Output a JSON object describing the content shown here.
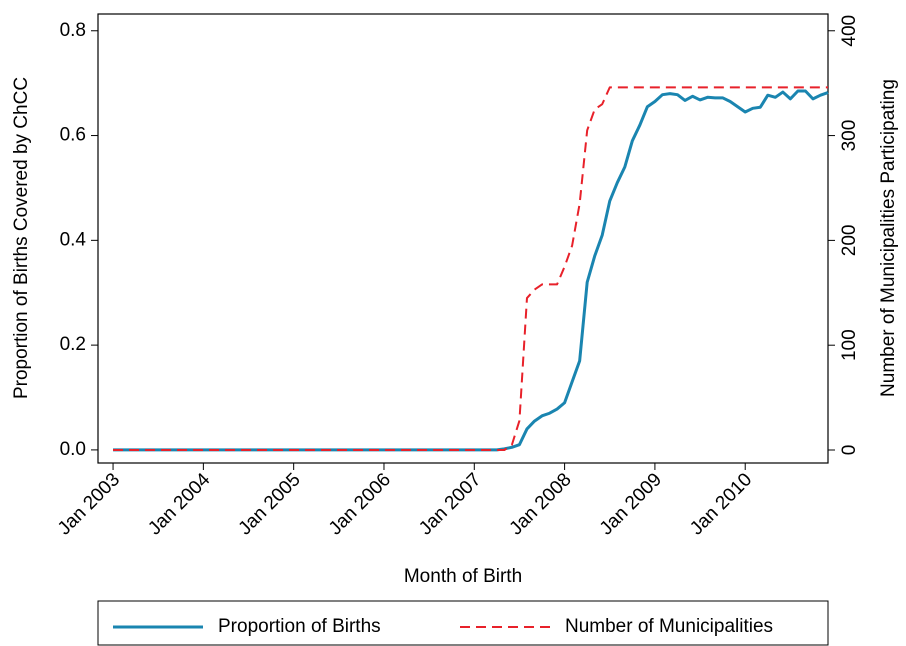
{
  "chart_data": {
    "type": "line",
    "xlabel": "Month of Birth",
    "ylabel": "Proportion of Births Covered by ChCC",
    "y2label": "Number of Municipalities Participating",
    "x": [
      "2003-01",
      "2003-02",
      "2003-03",
      "2003-04",
      "2003-05",
      "2003-06",
      "2003-07",
      "2003-08",
      "2003-09",
      "2003-10",
      "2003-11",
      "2003-12",
      "2004-01",
      "2004-02",
      "2004-03",
      "2004-04",
      "2004-05",
      "2004-06",
      "2004-07",
      "2004-08",
      "2004-09",
      "2004-10",
      "2004-11",
      "2004-12",
      "2005-01",
      "2005-02",
      "2005-03",
      "2005-04",
      "2005-05",
      "2005-06",
      "2005-07",
      "2005-08",
      "2005-09",
      "2005-10",
      "2005-11",
      "2005-12",
      "2006-01",
      "2006-02",
      "2006-03",
      "2006-04",
      "2006-05",
      "2006-06",
      "2006-07",
      "2006-08",
      "2006-09",
      "2006-10",
      "2006-11",
      "2006-12",
      "2007-01",
      "2007-02",
      "2007-03",
      "2007-04",
      "2007-05",
      "2007-06",
      "2007-07",
      "2007-08",
      "2007-09",
      "2007-10",
      "2007-11",
      "2007-12",
      "2008-01",
      "2008-02",
      "2008-03",
      "2008-04",
      "2008-05",
      "2008-06",
      "2008-07",
      "2008-08",
      "2008-09",
      "2008-10",
      "2008-11",
      "2008-12",
      "2009-01",
      "2009-02",
      "2009-03",
      "2009-04",
      "2009-05",
      "2009-06",
      "2009-07",
      "2009-08",
      "2009-09",
      "2009-10",
      "2009-11",
      "2009-12",
      "2010-01",
      "2010-02",
      "2010-03",
      "2010-04",
      "2010-05",
      "2010-06",
      "2010-07",
      "2010-08",
      "2010-09",
      "2010-10",
      "2010-11",
      "2010-12"
    ],
    "series": [
      {
        "name": "Proportion of Births",
        "color": "#1a85b0",
        "dash": false,
        "axis": "y",
        "values": [
          0,
          0,
          0,
          0,
          0,
          0,
          0,
          0,
          0,
          0,
          0,
          0,
          0,
          0,
          0,
          0,
          0,
          0,
          0,
          0,
          0,
          0,
          0,
          0,
          0,
          0,
          0,
          0,
          0,
          0,
          0,
          0,
          0,
          0,
          0,
          0,
          0,
          0,
          0,
          0,
          0,
          0,
          0,
          0,
          0,
          0,
          0,
          0,
          0,
          0,
          0,
          0,
          0.002,
          0.005,
          0.01,
          0.04,
          0.055,
          0.065,
          0.07,
          0.078,
          0.09,
          0.13,
          0.17,
          0.32,
          0.37,
          0.41,
          0.475,
          0.51,
          0.54,
          0.59,
          0.62,
          0.655,
          0.665,
          0.678,
          0.68,
          0.678,
          0.667,
          0.675,
          0.668,
          0.673,
          0.672,
          0.672,
          0.665,
          0.655,
          0.645,
          0.652,
          0.654,
          0.677,
          0.673,
          0.683,
          0.67,
          0.685,
          0.685,
          0.67,
          0.677,
          0.682
        ]
      },
      {
        "name": "Number of Municipalities",
        "color": "#e8212a",
        "dash": true,
        "axis": "y2",
        "values": [
          0,
          0,
          0,
          0,
          0,
          0,
          0,
          0,
          0,
          0,
          0,
          0,
          0,
          0,
          0,
          0,
          0,
          0,
          0,
          0,
          0,
          0,
          0,
          0,
          0,
          0,
          0,
          0,
          0,
          0,
          0,
          0,
          0,
          0,
          0,
          0,
          0,
          0,
          0,
          0,
          0,
          0,
          0,
          0,
          0,
          0,
          0,
          0,
          0,
          0,
          0,
          0,
          0,
          5,
          28,
          145,
          153,
          158,
          158,
          158,
          175,
          195,
          235,
          305,
          325,
          330,
          346,
          346,
          346,
          346,
          346,
          346,
          346,
          346,
          346,
          346,
          346,
          346,
          346,
          346,
          346,
          346,
          346,
          346,
          346,
          346,
          346,
          346,
          346,
          346,
          346,
          346,
          346,
          346,
          346,
          346
        ]
      }
    ],
    "xlim": [
      "2002-11",
      "2010-12"
    ],
    "xticks": [
      {
        "value": "2003-01",
        "label": "Jan 2003"
      },
      {
        "value": "2004-01",
        "label": "Jan 2004"
      },
      {
        "value": "2005-01",
        "label": "Jan 2005"
      },
      {
        "value": "2006-01",
        "label": "Jan 2006"
      },
      {
        "value": "2007-01",
        "label": "Jan 2007"
      },
      {
        "value": "2008-01",
        "label": "Jan 2008"
      },
      {
        "value": "2009-01",
        "label": "Jan 2009"
      },
      {
        "value": "2010-01",
        "label": "Jan 2010"
      }
    ],
    "ylim": [
      -0.025,
      0.832
    ],
    "yticks": [
      {
        "value": 0,
        "label": "0.0"
      },
      0.2,
      0.4,
      0.6,
      0.8
    ],
    "y2lim": [
      -12.4,
      416
    ],
    "y2ticks": [
      0,
      100,
      200,
      300,
      400
    ],
    "legend": "bottom"
  }
}
